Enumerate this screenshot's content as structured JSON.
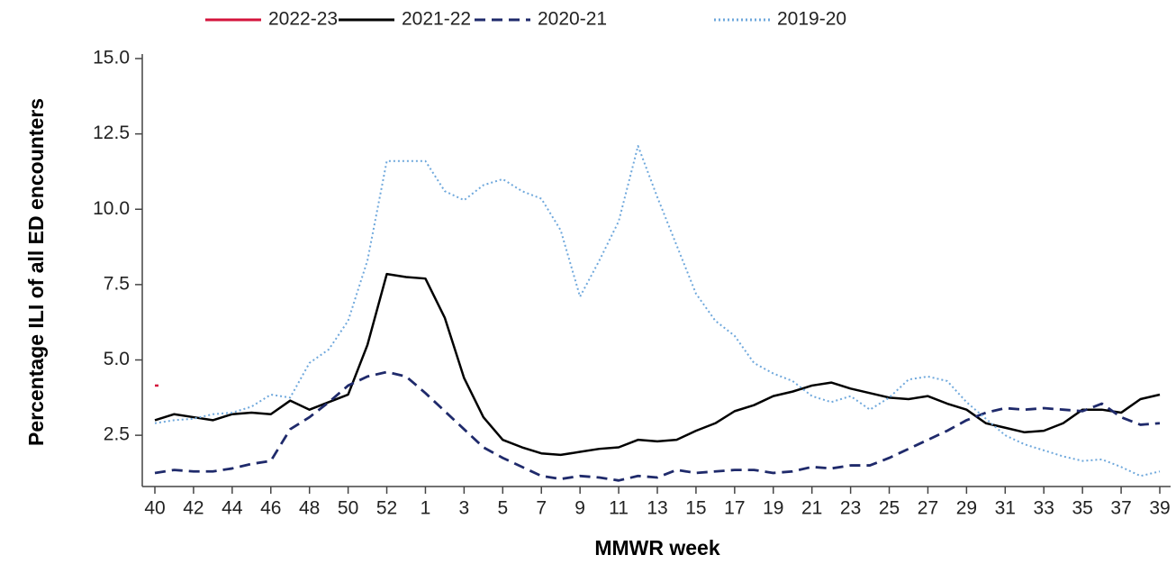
{
  "chart_data": {
    "type": "line",
    "ylabel": "Percentage ILI of all ED encounters",
    "xlabel": "MMWR week",
    "categories": [
      "40",
      null,
      "42",
      null,
      "44",
      null,
      "46",
      null,
      "48",
      null,
      "50",
      null,
      "52",
      null,
      "1",
      null,
      "3",
      null,
      "5",
      null,
      "7",
      null,
      "9",
      null,
      "11",
      null,
      "13",
      null,
      "15",
      null,
      "17",
      null,
      "19",
      null,
      "21",
      null,
      "23",
      null,
      "25",
      null,
      "27",
      null,
      "29",
      null,
      "31",
      null,
      "33",
      null,
      "35",
      null,
      "37",
      null,
      "39"
    ],
    "ylim": [
      0.8,
      15
    ],
    "yticks": [
      2.5,
      {
        "value": 5,
        "label": "5.0"
      },
      7.5,
      {
        "value": 10,
        "label": "10.0"
      },
      12.5,
      {
        "value": 15,
        "label": "15.0"
      }
    ],
    "legend": "top",
    "series": [
      {
        "name": "2022-23",
        "color": "#d4143c",
        "style": "solid",
        "values": [
          4.15,
          null,
          null,
          null,
          null,
          null,
          null,
          null,
          null,
          null,
          null,
          null,
          null,
          null,
          null,
          null,
          null,
          null,
          null,
          null,
          null,
          null,
          null,
          null,
          null,
          null,
          null,
          null,
          null,
          null,
          null,
          null,
          null,
          null,
          null,
          null,
          null,
          null,
          null,
          null,
          null,
          null,
          null,
          null,
          null,
          null,
          null,
          null,
          null,
          null,
          null,
          null,
          null
        ]
      },
      {
        "name": "2021-22",
        "color": "#000000",
        "style": "solid",
        "values": [
          3.0,
          3.2,
          3.1,
          3.0,
          3.2,
          3.25,
          3.2,
          3.65,
          3.35,
          3.6,
          3.85,
          5.5,
          7.85,
          7.75,
          7.7,
          6.4,
          4.4,
          3.1,
          2.35,
          2.1,
          1.9,
          1.85,
          1.95,
          2.05,
          2.1,
          2.35,
          2.3,
          2.35,
          2.65,
          2.9,
          3.3,
          3.5,
          3.8,
          3.95,
          4.15,
          4.25,
          4.05,
          3.9,
          3.75,
          3.7,
          3.8,
          3.55,
          3.35,
          2.9,
          2.75,
          2.6,
          2.65,
          2.9,
          3.35,
          3.35,
          3.25,
          3.7,
          3.85
        ]
      },
      {
        "name": "2020-21",
        "color": "#1f2a6b",
        "style": "dashed",
        "values": [
          1.25,
          1.35,
          1.3,
          1.3,
          1.4,
          1.55,
          1.65,
          2.7,
          3.1,
          3.6,
          4.15,
          4.45,
          4.6,
          4.45,
          3.9,
          3.3,
          2.7,
          2.1,
          1.75,
          1.45,
          1.15,
          1.05,
          1.15,
          1.1,
          1.0,
          1.15,
          1.1,
          1.35,
          1.25,
          1.3,
          1.35,
          1.35,
          1.25,
          1.3,
          1.45,
          1.4,
          1.5,
          1.5,
          1.75,
          2.05,
          2.35,
          2.65,
          3.0,
          3.25,
          3.4,
          3.35,
          3.4,
          3.35,
          3.3,
          3.55,
          3.1,
          2.85,
          2.9
        ]
      },
      {
        "name": "2019-20",
        "color": "#6fa8dc",
        "style": "dotted",
        "values": [
          2.9,
          3.0,
          3.05,
          3.2,
          3.25,
          3.45,
          3.85,
          3.75,
          4.9,
          5.35,
          6.3,
          8.3,
          11.6,
          11.6,
          11.6,
          10.6,
          10.3,
          10.8,
          11.0,
          10.6,
          10.35,
          9.3,
          7.1,
          8.3,
          9.6,
          12.1,
          10.4,
          8.8,
          7.2,
          6.3,
          5.8,
          4.9,
          4.55,
          4.3,
          3.8,
          3.6,
          3.8,
          3.35,
          3.75,
          4.35,
          4.45,
          4.3,
          3.6,
          3.05,
          2.5,
          2.2,
          2.0,
          1.8,
          1.65,
          1.7,
          1.45,
          1.15,
          1.3
        ]
      }
    ]
  }
}
